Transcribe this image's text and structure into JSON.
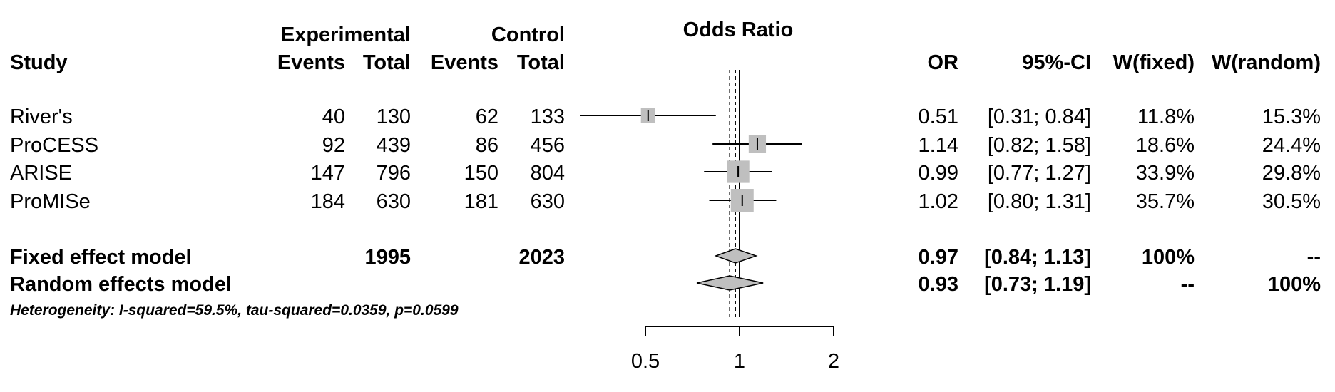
{
  "header": {
    "study": "Study",
    "experimental": "Experimental",
    "control": "Control",
    "events": "Events",
    "total": "Total",
    "odds_ratio": "Odds Ratio",
    "or": "OR",
    "ci": "95%-CI",
    "w_fixed": "W(fixed)",
    "w_random": "W(random)"
  },
  "studies": [
    {
      "name": "River's",
      "e_events": "40",
      "e_total": "130",
      "c_events": "62",
      "c_total": "133",
      "or": "0.51",
      "ci": "[0.31; 0.84]",
      "w_fixed": "11.8%",
      "w_random": "15.3%"
    },
    {
      "name": "ProCESS",
      "e_events": "92",
      "e_total": "439",
      "c_events": "86",
      "c_total": "456",
      "or": "1.14",
      "ci": "[0.82; 1.58]",
      "w_fixed": "18.6%",
      "w_random": "24.4%"
    },
    {
      "name": "ARISE",
      "e_events": "147",
      "e_total": "796",
      "c_events": "150",
      "c_total": "804",
      "or": "0.99",
      "ci": "[0.77; 1.27]",
      "w_fixed": "33.9%",
      "w_random": "29.8%"
    },
    {
      "name": "ProMISe",
      "e_events": "184",
      "e_total": "630",
      "c_events": "181",
      "c_total": "630",
      "or": "1.02",
      "ci": "[0.80; 1.31]",
      "w_fixed": "35.7%",
      "w_random": "30.5%"
    }
  ],
  "fixed": {
    "label": "Fixed effect model",
    "e_total": "1995",
    "c_total": "2023",
    "or": "0.97",
    "ci": "[0.84; 1.13]",
    "w_fixed": "100%",
    "w_random": "--"
  },
  "random": {
    "label": "Random effects model",
    "or": "0.93",
    "ci": "[0.73; 1.19]",
    "w_fixed": "--",
    "w_random": "100%"
  },
  "heterogeneity": "Heterogeneity: I-squared=59.5%, tau-squared=0.0359, p=0.0599",
  "colors": {
    "box": "#bfbfbf",
    "diamond": "#bfbfbf",
    "line": "#000000"
  },
  "chart_data": {
    "type": "forest",
    "title": "Odds Ratio",
    "x_scale": "log",
    "xlim": [
      0.5,
      2
    ],
    "x_ticks": [
      0.5,
      1,
      2
    ],
    "x_tick_labels": [
      "0.5",
      "1",
      "2"
    ],
    "reference_line": 1,
    "studies": [
      {
        "name": "River's",
        "or": 0.51,
        "lower": 0.31,
        "upper": 0.84,
        "weight_fixed": 11.8,
        "weight_random": 15.3
      },
      {
        "name": "ProCESS",
        "or": 1.14,
        "lower": 0.82,
        "upper": 1.58,
        "weight_fixed": 18.6,
        "weight_random": 24.4
      },
      {
        "name": "ARISE",
        "or": 0.99,
        "lower": 0.77,
        "upper": 1.27,
        "weight_fixed": 33.9,
        "weight_random": 29.8
      },
      {
        "name": "ProMISe",
        "or": 1.02,
        "lower": 0.8,
        "upper": 1.31,
        "weight_fixed": 35.7,
        "weight_random": 30.5
      }
    ],
    "fixed_effect": {
      "or": 0.97,
      "lower": 0.84,
      "upper": 1.13
    },
    "random_effects": {
      "or": 0.93,
      "lower": 0.73,
      "upper": 1.19
    }
  }
}
